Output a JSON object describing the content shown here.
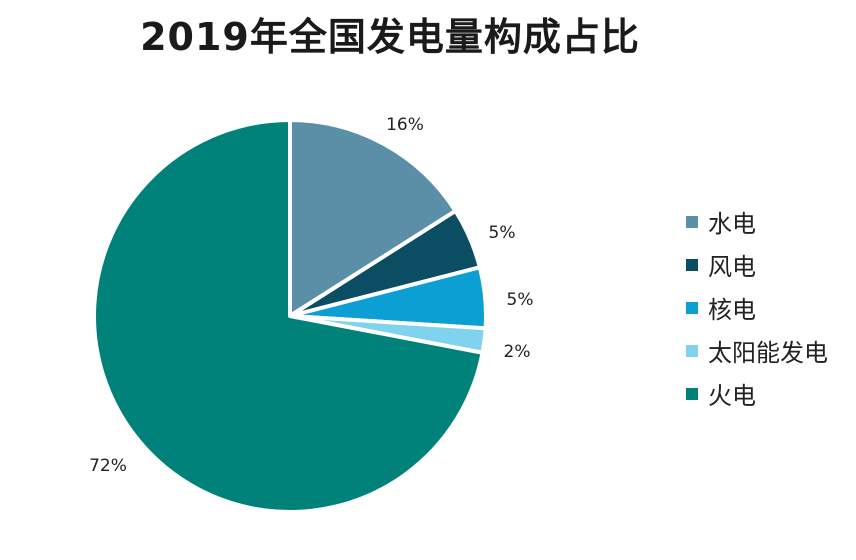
{
  "chart_data": {
    "type": "pie",
    "title": "2019年全国发电量构成占比",
    "categories": [
      "水电",
      "风电",
      "核电",
      "太阳能发电",
      "火电"
    ],
    "values": [
      16,
      5,
      5,
      2,
      72
    ],
    "labels": [
      "16%",
      "5%",
      "5%",
      "2%",
      "72%"
    ],
    "colors": [
      "#5b8fa8",
      "#0b4d63",
      "#0b9fd4",
      "#7fd3ef",
      "#00827a"
    ],
    "legend_position": "right"
  }
}
